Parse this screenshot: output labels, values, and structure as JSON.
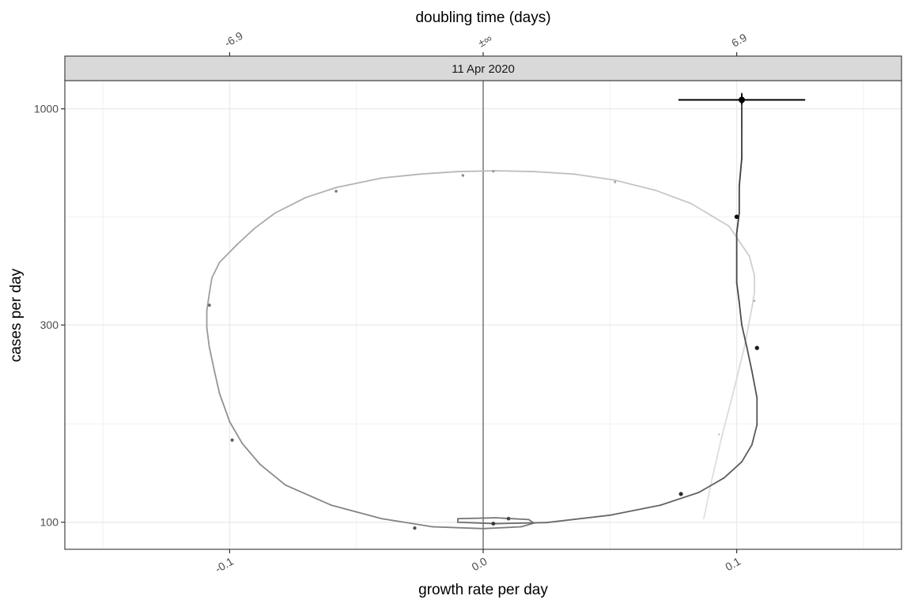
{
  "chart_data": {
    "type": "scatter",
    "panel_title": "11 Apr 2020",
    "xlabel": "growth rate per day",
    "ylabel": "cases per day",
    "x2label": "doubling time (days)",
    "xlim": [
      -0.165,
      0.165
    ],
    "ylim": [
      86,
      1170
    ],
    "y_scale": "log",
    "x_ticks": [
      {
        "value": -0.1,
        "label": "-0.1"
      },
      {
        "value": 0.0,
        "label": "0.0"
      },
      {
        "value": 0.1,
        "label": "0.1"
      }
    ],
    "x_minor_ticks": [
      -0.15,
      -0.05,
      0.05,
      0.15
    ],
    "y_ticks": [
      {
        "value": 100,
        "label": "100"
      },
      {
        "value": 300,
        "label": "300"
      },
      {
        "value": 1000,
        "label": "1000"
      }
    ],
    "y_minor_ticks": [
      173,
      548
    ],
    "x2_ticks": [
      {
        "value": -0.1,
        "label": "-6.9"
      },
      {
        "value": 0.0,
        "label": "±∞"
      },
      {
        "value": 0.1,
        "label": "6.9"
      }
    ],
    "zero_line_x": 0.0,
    "trajectory": [
      [
        0.087,
        102
      ],
      [
        0.09,
        125
      ],
      [
        0.094,
        160
      ],
      [
        0.099,
        210
      ],
      [
        0.103,
        265
      ],
      [
        0.106,
        330
      ],
      [
        0.107,
        360
      ],
      [
        0.107,
        395
      ],
      [
        0.105,
        440
      ],
      [
        0.097,
        520
      ],
      [
        0.082,
        590
      ],
      [
        0.068,
        635
      ],
      [
        0.052,
        672
      ],
      [
        0.036,
        695
      ],
      [
        0.02,
        705
      ],
      [
        0.005,
        708
      ],
      [
        -0.01,
        705
      ],
      [
        -0.025,
        695
      ],
      [
        -0.04,
        680
      ],
      [
        -0.058,
        645
      ],
      [
        -0.07,
        610
      ],
      [
        -0.082,
        560
      ],
      [
        -0.09,
        515
      ],
      [
        -0.097,
        470
      ],
      [
        -0.104,
        425
      ],
      [
        -0.107,
        390
      ],
      [
        -0.108,
        358
      ],
      [
        -0.109,
        325
      ],
      [
        -0.109,
        295
      ],
      [
        -0.108,
        265
      ],
      [
        -0.106,
        232
      ],
      [
        -0.104,
        205
      ],
      [
        -0.1,
        175
      ],
      [
        -0.095,
        155
      ],
      [
        -0.088,
        138
      ],
      [
        -0.078,
        123
      ],
      [
        -0.06,
        110
      ],
      [
        -0.04,
        102
      ],
      [
        -0.02,
        97.5
      ],
      [
        0.0,
        96.5
      ],
      [
        0.015,
        97.5
      ],
      [
        0.02,
        99.5
      ],
      [
        0.018,
        101.5
      ],
      [
        0.005,
        102.5
      ],
      [
        -0.01,
        102
      ],
      [
        -0.01,
        100
      ],
      [
        0.005,
        99.2
      ],
      [
        0.025,
        99.8
      ],
      [
        0.05,
        104
      ],
      [
        0.07,
        110
      ],
      [
        0.085,
        118
      ],
      [
        0.095,
        128
      ],
      [
        0.102,
        140
      ],
      [
        0.106,
        154
      ],
      [
        0.108,
        172
      ],
      [
        0.108,
        200
      ],
      [
        0.106,
        232
      ],
      [
        0.104,
        265
      ],
      [
        0.102,
        300
      ],
      [
        0.101,
        340
      ],
      [
        0.1,
        380
      ],
      [
        0.1,
        430
      ],
      [
        0.1,
        500
      ],
      [
        0.101,
        560
      ],
      [
        0.101,
        650
      ],
      [
        0.102,
        760
      ],
      [
        0.102,
        900
      ],
      [
        0.102,
        1000
      ],
      [
        0.102,
        1090
      ]
    ],
    "points": [
      {
        "x": 0.093,
        "y": 163
      },
      {
        "x": 0.107,
        "y": 343
      },
      {
        "x": 0.052,
        "y": 665
      },
      {
        "x": 0.004,
        "y": 706
      },
      {
        "x": -0.008,
        "y": 690
      },
      {
        "x": -0.058,
        "y": 632
      },
      {
        "x": -0.108,
        "y": 335
      },
      {
        "x": -0.099,
        "y": 158
      },
      {
        "x": -0.027,
        "y": 96.8
      },
      {
        "x": 0.01,
        "y": 102
      },
      {
        "x": 0.004,
        "y": 99.2
      },
      {
        "x": 0.078,
        "y": 117
      },
      {
        "x": 0.108,
        "y": 264
      },
      {
        "x": 0.1,
        "y": 548
      }
    ],
    "current_point": {
      "x": 0.102,
      "y": 1051,
      "x_err": [
        0.077,
        0.127
      ],
      "y_err": [
        1025,
        1085
      ]
    }
  }
}
